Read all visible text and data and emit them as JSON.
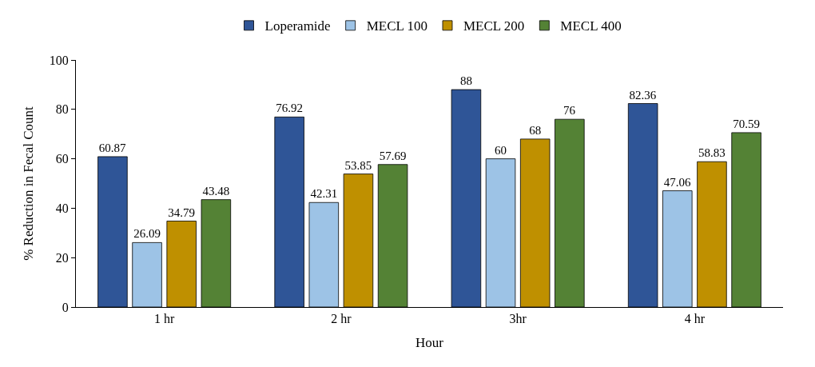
{
  "chart_data": {
    "type": "bar",
    "xlabel": "Hour",
    "ylabel": "% Reduction in Fecal Count",
    "categories": [
      "1 hr",
      "2 hr",
      "3hr",
      "4 hr"
    ],
    "series": [
      {
        "name": "Loperamide",
        "color": "#2f5597",
        "values": [
          60.87,
          76.92,
          88,
          82.36
        ]
      },
      {
        "name": "MECL 100",
        "color": "#9dc3e6",
        "values": [
          26.09,
          42.31,
          60,
          47.06
        ]
      },
      {
        "name": "MECL 200",
        "color": "#bf9000",
        "values": [
          34.79,
          53.85,
          68,
          58.83
        ]
      },
      {
        "name": "MECL 400",
        "color": "#548235",
        "values": [
          43.48,
          57.69,
          76,
          70.59
        ]
      }
    ],
    "ylim": [
      0,
      100
    ],
    "yticks": [
      0,
      20,
      40,
      60,
      80,
      100
    ],
    "legend": "top",
    "data_labels": true
  }
}
